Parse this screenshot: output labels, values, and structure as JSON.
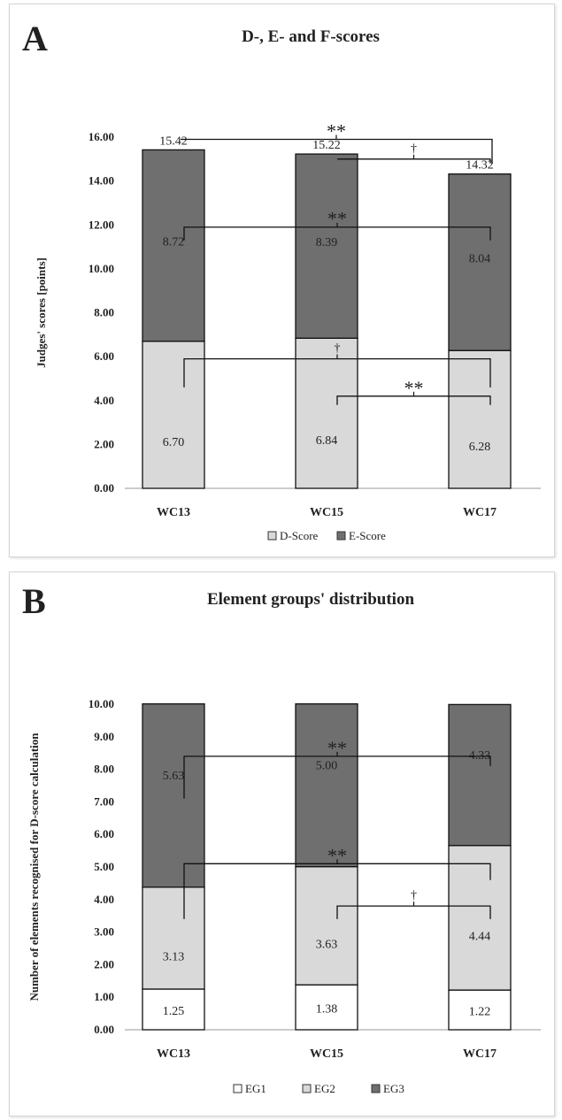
{
  "panels": [
    {
      "letter": "A",
      "chart_data": {
        "type": "bar",
        "stacked": true,
        "title": "D-, E- and F-scores",
        "xlabel": "",
        "ylabel": "Judges' scores [points]",
        "categories": [
          "WC13",
          "WC15",
          "WC17"
        ],
        "ylim": [
          0,
          16
        ],
        "yticks": [
          "0.00",
          "2.00",
          "4.00",
          "6.00",
          "8.00",
          "10.00",
          "12.00",
          "14.00",
          "16.00"
        ],
        "series": [
          {
            "name": "D-Score",
            "values": [
              6.7,
              6.84,
              6.28
            ],
            "labels": [
              "6.70",
              "6.84",
              "6.28"
            ],
            "color": "#d9d9d9"
          },
          {
            "name": "E-Score",
            "values": [
              8.72,
              8.39,
              8.04
            ],
            "labels": [
              "8.72",
              "8.39",
              "8.04"
            ],
            "color": "#6f6f6f"
          }
        ],
        "totals": [
          "15.42",
          "15.22",
          "14.32"
        ],
        "significance": [
          {
            "from": 0,
            "to": 2,
            "level": 15.9,
            "drop_from": 15.9,
            "drop_to": 14.8,
            "mark": "**"
          },
          {
            "from": 1,
            "to": 2,
            "level": 15.0,
            "drop_from": 15.0,
            "drop_to": 14.8,
            "mark": "†"
          },
          {
            "from": 0,
            "to": 2,
            "level": 11.9,
            "drop_from": 11.3,
            "drop_to": 11.3,
            "mark": "**"
          },
          {
            "from": 0,
            "to": 2,
            "level": 5.9,
            "drop_from": 4.6,
            "drop_to": 4.6,
            "mark": "†"
          },
          {
            "from": 1,
            "to": 2,
            "level": 4.2,
            "drop_from": 3.8,
            "drop_to": 3.8,
            "mark": "**"
          }
        ],
        "legend": "bottom",
        "grid": false
      }
    },
    {
      "letter": "B",
      "chart_data": {
        "type": "bar",
        "stacked": true,
        "title": "Element groups' distribution",
        "xlabel": "",
        "ylabel": "Number of elements recognised for D-score calculation",
        "categories": [
          "WC13",
          "WC15",
          "WC17"
        ],
        "ylim": [
          0,
          10
        ],
        "yticks": [
          "0.00",
          "1.00",
          "2.00",
          "3.00",
          "4.00",
          "5.00",
          "6.00",
          "7.00",
          "8.00",
          "9.00",
          "10.00"
        ],
        "series": [
          {
            "name": "EG1",
            "values": [
              1.25,
              1.38,
              1.22
            ],
            "labels": [
              "1.25",
              "1.38",
              "1.22"
            ],
            "color": "#ffffff"
          },
          {
            "name": "EG2",
            "values": [
              3.13,
              3.63,
              4.44
            ],
            "labels": [
              "3.13",
              "3.63",
              "4.44"
            ],
            "color": "#d9d9d9"
          },
          {
            "name": "EG3",
            "values": [
              5.63,
              5.0,
              4.33
            ],
            "labels": [
              "5.63",
              "5.00",
              "4.33"
            ],
            "color": "#6f6f6f"
          }
        ],
        "totals": [],
        "significance": [
          {
            "from": 0,
            "to": 2,
            "level": 8.4,
            "drop_from": 7.1,
            "drop_to": 8.1,
            "mark": "**"
          },
          {
            "from": 0,
            "to": 2,
            "level": 5.1,
            "drop_from": 3.4,
            "drop_to": 4.6,
            "mark": "**"
          },
          {
            "from": 1,
            "to": 2,
            "level": 3.8,
            "drop_from": 3.4,
            "drop_to": 3.4,
            "mark": "†"
          }
        ],
        "legend": "bottom",
        "grid": false
      }
    }
  ]
}
